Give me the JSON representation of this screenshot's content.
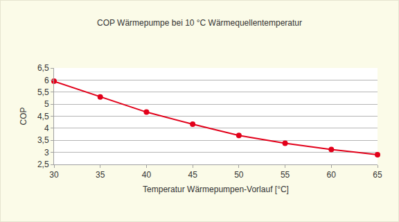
{
  "chart_data": {
    "type": "line",
    "title": "COP Wärmepumpe bei 10 °C Wärmequellentemperatur",
    "x_label": "Temperatur Wärmepumpen-Vorlauf [°C]",
    "y_label": "COP",
    "x": [
      30,
      35,
      40,
      45,
      50,
      55,
      60,
      65
    ],
    "values": [
      5.95,
      5.3,
      4.67,
      4.17,
      3.7,
      3.38,
      3.12,
      2.9
    ],
    "color": "#e2001a",
    "marker": "circle",
    "line_style": "solid",
    "xlim": [
      30,
      65
    ],
    "xticks": [
      30,
      35,
      40,
      45,
      50,
      55,
      60,
      65
    ],
    "ylim": [
      2.5,
      6.5
    ],
    "yticks": [
      {
        "value": 2.5,
        "label": "2,5"
      },
      3,
      {
        "value": 3.5,
        "label": "3,5"
      },
      4,
      {
        "value": 4.5,
        "label": "4,5"
      },
      5,
      {
        "value": 5.5,
        "label": "5,5"
      },
      6,
      {
        "value": 6.5,
        "label": "6,5"
      }
    ],
    "grid": true
  }
}
